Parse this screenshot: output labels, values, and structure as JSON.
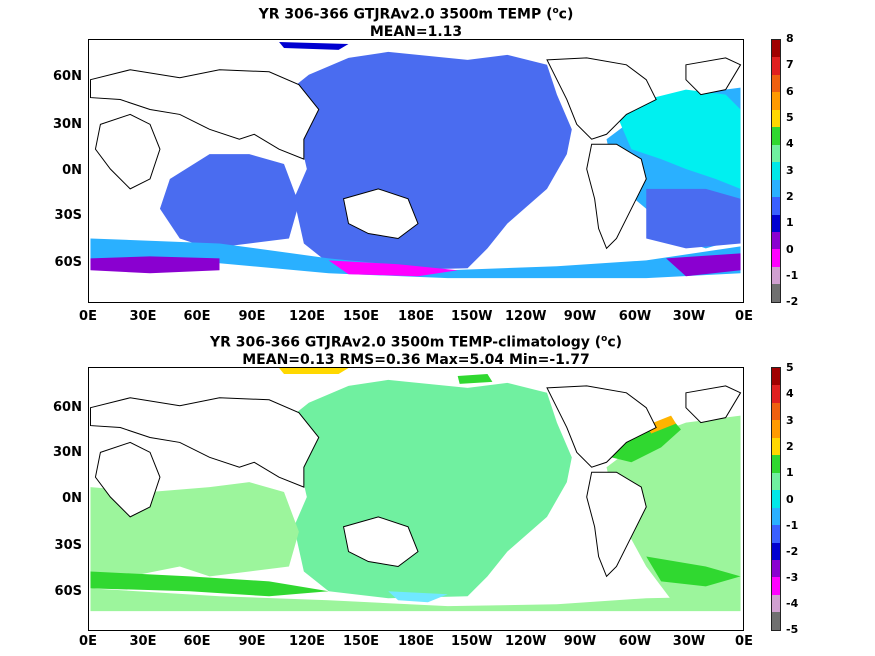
{
  "panels": [
    {
      "id": "top",
      "title_line1_main": "YR 306-366 GTJRAv2.0 3500m TEMP (",
      "title_line1_sup": "o",
      "title_line1_end": "c)",
      "title_line2": "MEAN=1.13",
      "y_labels": [
        "60N",
        "30N",
        "0N",
        "30S",
        "60S"
      ],
      "x_labels": [
        "0E",
        "30E",
        "60E",
        "90E",
        "120E",
        "150E",
        "180E",
        "150W",
        "120W",
        "90W",
        "60W",
        "30W",
        "0E"
      ],
      "colorbar": {
        "labels": [
          "8",
          "7",
          "6",
          "5",
          "4",
          "3",
          "2",
          "1",
          "0",
          "-1",
          "-2"
        ],
        "colors": [
          "#a00000",
          "#e02020",
          "#ee6010",
          "#ff9a00",
          "#ffd800",
          "#30d830",
          "#70f0a0",
          "#00e8e8",
          "#2ab0ff",
          "#3a60ff",
          "#0000d0",
          "#8a00d0",
          "#ff00ff",
          "#d0a0d0",
          "#707070"
        ]
      }
    },
    {
      "id": "bottom",
      "title_line1_main": "YR 306-366 GTJRAv2.0 3500m TEMP-climatology (",
      "title_line1_sup": "o",
      "title_line1_end": "c)",
      "title_line2": "MEAN=0.13   RMS=0.36   Max=5.04   Min=-1.77",
      "y_labels": [
        "60N",
        "30N",
        "0N",
        "30S",
        "60S"
      ],
      "x_labels": [
        "0E",
        "30E",
        "60E",
        "90E",
        "120E",
        "150E",
        "180E",
        "150W",
        "120W",
        "90W",
        "60W",
        "30W",
        "0E"
      ],
      "colorbar": {
        "labels": [
          "5",
          "4",
          "3",
          "2",
          "1",
          "0",
          "-1",
          "-2",
          "-3",
          "-4",
          "-5"
        ],
        "colors": [
          "#a00000",
          "#e02020",
          "#ee6010",
          "#ff9a00",
          "#ffd800",
          "#30d830",
          "#70f0a0",
          "#00e8e8",
          "#2ab0ff",
          "#3a60ff",
          "#0000d0",
          "#8a00d0",
          "#ff00ff",
          "#d0a0d0",
          "#707070"
        ]
      }
    }
  ],
  "colors": {
    "land": "#ffffff",
    "coast": "#000000",
    "top_deep": "#4a6cf0",
    "top_mid": "#2ab0ff",
    "top_warm": "#00f0f0",
    "top_cold": "#8a00d0",
    "top_vcold": "#ff00ff",
    "bot_pos": "#70f0a0",
    "bot_neg": "#9cf59c",
    "bot_green": "#30d830",
    "bot_orange": "#ffb400",
    "bot_cyan": "#70e8ff"
  }
}
